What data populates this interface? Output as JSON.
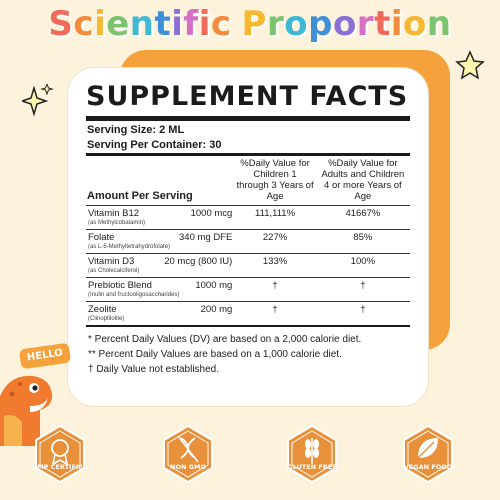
{
  "banner": {
    "letters": [
      {
        "ch": "S",
        "color": "#f06a5a"
      },
      {
        "ch": "c",
        "color": "#f28b3b"
      },
      {
        "ch": "i",
        "color": "#f7b731"
      },
      {
        "ch": "e",
        "color": "#7cc36f"
      },
      {
        "ch": "n",
        "color": "#3fb9d3"
      },
      {
        "ch": "t",
        "color": "#3f8fd6"
      },
      {
        "ch": "i",
        "color": "#8b6fd4"
      },
      {
        "ch": "f",
        "color": "#d56fc6"
      },
      {
        "ch": "i",
        "color": "#f06a5a"
      },
      {
        "ch": "c",
        "color": "#f28b3b"
      },
      {
        "ch": " ",
        "color": "#000000"
      },
      {
        "ch": "P",
        "color": "#f7b731"
      },
      {
        "ch": "r",
        "color": "#7cc36f"
      },
      {
        "ch": "o",
        "color": "#3fb9d3"
      },
      {
        "ch": "p",
        "color": "#3f8fd6"
      },
      {
        "ch": "o",
        "color": "#8b6fd4"
      },
      {
        "ch": "r",
        "color": "#d56fc6"
      },
      {
        "ch": "t",
        "color": "#f06a5a"
      },
      {
        "ch": "i",
        "color": "#f28b3b"
      },
      {
        "ch": "o",
        "color": "#f7b731"
      },
      {
        "ch": "n",
        "color": "#7cc36f"
      }
    ]
  },
  "facts": {
    "title": "SUPPLEMENT FACTS",
    "serving_size": "Serving Size: 2 ML",
    "servings_per_container": "Serving Per Container: 30",
    "header": {
      "amount": "Amount Per Serving",
      "children": "%Daily Value for Children 1 through 3 Years of Age",
      "adults": "%Daily Value for Adults and Children 4 or more Years of Age"
    },
    "rows": [
      {
        "name": "Vitamin B12",
        "amount": "1000 mcg",
        "sub": "(as Methylcobalamin)",
        "children": "111,111%",
        "adults": "41667%"
      },
      {
        "name": "Folate",
        "amount": "340 mg DFE",
        "sub": "(as L-5-Methyltetrahydrofolate)",
        "children": "227%",
        "adults": "85%"
      },
      {
        "name": "Vitamin D3",
        "amount": "20 mcg (800 IU)",
        "sub": "(as Cholecalciferol)",
        "children": "133%",
        "adults": "100%"
      },
      {
        "name": "Prebiotic Blend",
        "amount": "1000 mg",
        "sub": "(Inulin and fructooligosaccharides)",
        "children": "†",
        "adults": "†"
      },
      {
        "name": "Zeolite",
        "amount": "200 mg",
        "sub": "(Clinoptilolite)",
        "children": "†",
        "adults": "†"
      }
    ],
    "notes": [
      "* Percent Daily Values (DV) are based on a 2,000 calorie diet.",
      "** Percent Daily Values are based on a 1,000 calorie diet.",
      "† Daily Value not established."
    ]
  },
  "hello_sign": "HELLO",
  "badges": [
    {
      "label": "GMP CERTIFIED",
      "icon": "gmp-medal-icon"
    },
    {
      "label": "NON GMO",
      "icon": "dna-icon"
    },
    {
      "label": "GLUTEN FREE",
      "icon": "wheat-icon"
    },
    {
      "label": "VEGAN FOOD",
      "icon": "leaf-icon"
    }
  ],
  "colors": {
    "background": "#fdf3dc",
    "accent": "#f6a23c",
    "badge": "#e8903a",
    "text": "#1b1b1b"
  }
}
